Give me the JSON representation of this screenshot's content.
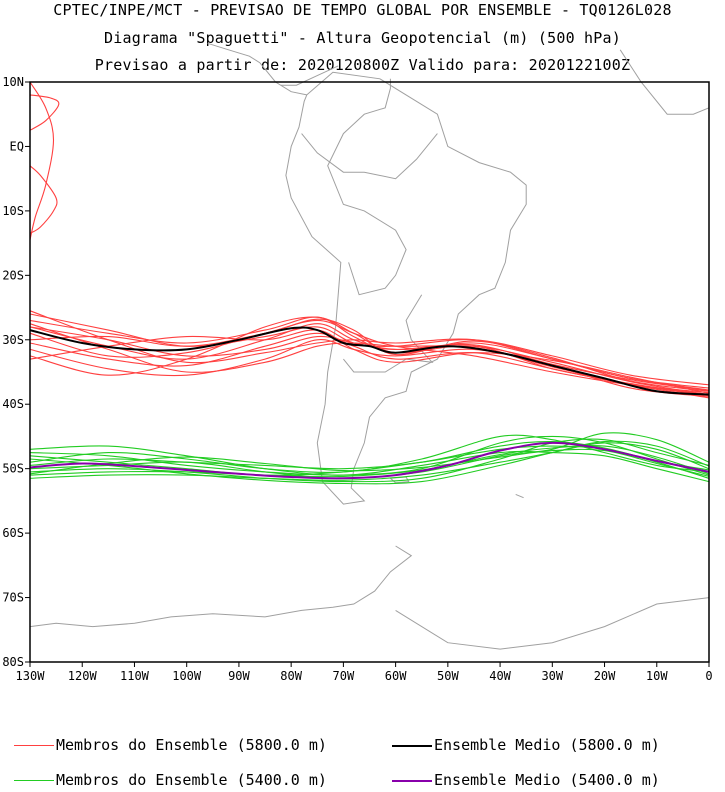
{
  "title": {
    "line1": "CPTEC/INPE/MCT - PREVISAO DE TEMPO GLOBAL POR ENSEMBLE - TQ0126L028",
    "line2": "Diagrama \"Spaguetti\" - Altura Geopotencial (m) (500 hPa)",
    "line3": "Previsao a partir de: 2020120800Z  Valido para: 2020122100Z"
  },
  "chart_data": {
    "type": "line",
    "title": "Diagrama \"Spaguetti\" - Altura Geopotencial (m) (500 hPa)",
    "xlim": [
      -130,
      0
    ],
    "ylim": [
      -80,
      10
    ],
    "x_ticks": [
      {
        "value": -130,
        "label": "130W"
      },
      {
        "value": -120,
        "label": "120W"
      },
      {
        "value": -110,
        "label": "110W"
      },
      {
        "value": -100,
        "label": "100W"
      },
      {
        "value": -90,
        "label": "90W"
      },
      {
        "value": -80,
        "label": "80W"
      },
      {
        "value": -70,
        "label": "70W"
      },
      {
        "value": -60,
        "label": "60W"
      },
      {
        "value": -50,
        "label": "50W"
      },
      {
        "value": -40,
        "label": "40W"
      },
      {
        "value": -30,
        "label": "30W"
      },
      {
        "value": -20,
        "label": "20W"
      },
      {
        "value": -10,
        "label": "10W"
      },
      {
        "value": 0,
        "label": "0"
      }
    ],
    "y_ticks": [
      {
        "value": 10,
        "label": "10N"
      },
      {
        "value": 0,
        "label": "EQ"
      },
      {
        "value": -10,
        "label": "10S"
      },
      {
        "value": -20,
        "label": "20S"
      },
      {
        "value": -30,
        "label": "30S"
      },
      {
        "value": -40,
        "label": "40S"
      },
      {
        "value": -50,
        "label": "50S"
      },
      {
        "value": -60,
        "label": "60S"
      },
      {
        "value": -70,
        "label": "70S"
      },
      {
        "value": -80,
        "label": "80S"
      }
    ],
    "colors": {
      "member_5800": "#ff4040",
      "mean_5800": "#000000",
      "member_5400": "#22cc22",
      "mean_5400": "#8800aa",
      "coast": "#a0a0a0"
    },
    "series": [
      {
        "name": "Ensemble Medio (5800.0 m)",
        "group": "mean_5800",
        "x": [
          -130,
          -120,
          -110,
          -100,
          -90,
          -80,
          -75,
          -70,
          -65,
          -60,
          -50,
          -40,
          -30,
          -20,
          -10,
          0
        ],
        "y": [
          -28.5,
          -30.5,
          -31.5,
          -31.5,
          -30,
          -28.2,
          -28.5,
          -30.5,
          -31,
          -32,
          -31,
          -32,
          -34,
          -36,
          -38,
          -38.5
        ]
      },
      {
        "name": "Ensemble Medio (5400.0 m)",
        "group": "mean_5400",
        "x": [
          -130,
          -120,
          -110,
          -100,
          -90,
          -80,
          -70,
          -60,
          -50,
          -40,
          -30,
          -20,
          -10,
          0
        ],
        "y": [
          -49.8,
          -49.2,
          -49.6,
          -50.2,
          -50.8,
          -51.3,
          -51.5,
          -51.0,
          -49.5,
          -47.2,
          -46.0,
          -47.0,
          -48.8,
          -50.5
        ]
      },
      {
        "name": "m58_1",
        "group": "member_5800",
        "x": [
          -130,
          -115,
          -100,
          -85,
          -75,
          -68,
          -60,
          -45,
          -30,
          -15,
          0
        ],
        "y": [
          -28,
          -31,
          -33,
          -30,
          -27.5,
          -30,
          -31.5,
          -31,
          -33.5,
          -36.5,
          -38.5
        ]
      },
      {
        "name": "m58_2",
        "group": "member_5800",
        "x": [
          -130,
          -115,
          -100,
          -85,
          -75,
          -68,
          -60,
          -45,
          -30,
          -15,
          0
        ],
        "y": [
          -27,
          -29,
          -30.5,
          -28.5,
          -26.5,
          -29.5,
          -32,
          -30.5,
          -33,
          -36,
          -37.5
        ]
      },
      {
        "name": "m58_3",
        "group": "member_5800",
        "x": [
          -130,
          -115,
          -100,
          -85,
          -75,
          -68,
          -60,
          -45,
          -30,
          -15,
          0
        ],
        "y": [
          -30.5,
          -33,
          -34,
          -31,
          -29,
          -31,
          -33,
          -32,
          -34.5,
          -37,
          -39
        ]
      },
      {
        "name": "m58_4",
        "group": "member_5800",
        "x": [
          -130,
          -115,
          -100,
          -85,
          -75,
          -68,
          -60,
          -45,
          -30,
          -15,
          0
        ],
        "y": [
          -26,
          -28.5,
          -31,
          -29.5,
          -28,
          -30.5,
          -31,
          -30,
          -32.5,
          -35.5,
          -37
        ]
      },
      {
        "name": "m58_5",
        "group": "member_5800",
        "x": [
          -130,
          -115,
          -100,
          -85,
          -75,
          -68,
          -60,
          -45,
          -30,
          -15,
          0
        ],
        "y": [
          -31.5,
          -34.5,
          -35.5,
          -33,
          -30,
          -31.5,
          -32.5,
          -31.5,
          -34,
          -37.5,
          -38.8
        ]
      },
      {
        "name": "m58_6",
        "group": "member_5800",
        "x": [
          -130,
          -115,
          -100,
          -85,
          -75,
          -68,
          -60,
          -45,
          -30,
          -15,
          0
        ],
        "y": [
          -29,
          -32.5,
          -32,
          -29,
          -27,
          -29,
          -31,
          -32.5,
          -35,
          -37,
          -38.2
        ]
      },
      {
        "name": "m58_7",
        "group": "member_5800",
        "x": [
          -130,
          -115,
          -100,
          -85,
          -75,
          -68,
          -60,
          -45,
          -30,
          -15,
          0
        ],
        "y": [
          -25.5,
          -30,
          -33.5,
          -32,
          -30.5,
          -30,
          -30.5,
          -30,
          -33,
          -36,
          -37.8
        ]
      },
      {
        "name": "m58_8",
        "group": "member_5800",
        "x": [
          -130,
          -115,
          -100,
          -85,
          -75,
          -68,
          -60,
          -45,
          -30,
          -15,
          0
        ],
        "y": [
          -32.5,
          -35.5,
          -33,
          -28,
          -26.5,
          -29,
          -32,
          -31,
          -34.5,
          -36.8,
          -38.6
        ]
      },
      {
        "name": "m58_9",
        "group": "member_5800",
        "x": [
          -130,
          -115,
          -100,
          -85,
          -75,
          -68,
          -60,
          -45,
          -30,
          -15,
          0
        ],
        "y": [
          -28,
          -30,
          -32.5,
          -31.5,
          -29.5,
          -30.5,
          -31.5,
          -30.8,
          -33.8,
          -36.2,
          -37.9
        ]
      },
      {
        "name": "m58_10",
        "group": "member_5800",
        "x": [
          -130,
          -115,
          -100,
          -85,
          -75,
          -68,
          -60,
          -45,
          -30,
          -15,
          0
        ],
        "y": [
          -33,
          -31,
          -29.5,
          -30,
          -28.5,
          -31.5,
          -33.5,
          -32,
          -33.2,
          -35.8,
          -38.3
        ]
      },
      {
        "name": "m58_11",
        "group": "member_5800",
        "x": [
          -130,
          -115,
          -100,
          -85,
          -75,
          -68,
          -60,
          -45,
          -30,
          -15,
          0
        ],
        "y": [
          -27.5,
          -31.5,
          -35,
          -33.5,
          -31,
          -30.5,
          -31,
          -31.2,
          -34.2,
          -36.9,
          -38.7
        ]
      },
      {
        "name": "m58_12",
        "group": "member_5800",
        "x": [
          -130,
          -115,
          -100,
          -85,
          -75,
          -68,
          -60,
          -45,
          -30,
          -15,
          0
        ],
        "y": [
          -30,
          -29.5,
          -31,
          -29,
          -26.8,
          -28.5,
          -32.3,
          -30.2,
          -32.8,
          -36.4,
          -38
        ]
      },
      {
        "name": "m58_tropics_a",
        "group": "member_5800",
        "x": [
          -130,
          -127,
          -125.5,
          -127,
          -129,
          -130
        ],
        "y": [
          10,
          6,
          1,
          -6,
          -11,
          -14.5
        ]
      },
      {
        "name": "m58_tropics_b",
        "group": "member_5800",
        "x": [
          -130,
          -127,
          -124.5,
          -126,
          -130
        ],
        "y": [
          2.5,
          4,
          6.5,
          7.5,
          8
        ]
      },
      {
        "name": "m58_tropics_c",
        "group": "member_5800",
        "x": [
          -130,
          -128,
          -125,
          -125.5,
          -128,
          -130
        ],
        "y": [
          -3,
          -4.5,
          -8,
          -10,
          -12.5,
          -13.5
        ]
      },
      {
        "name": "m54_1",
        "group": "member_5400",
        "x": [
          -130,
          -115,
          -100,
          -85,
          -70,
          -55,
          -40,
          -30,
          -20,
          -10,
          0
        ],
        "y": [
          -47.5,
          -48,
          -49.5,
          -50.5,
          -51,
          -50,
          -46,
          -45,
          -46,
          -48.5,
          -51
        ]
      },
      {
        "name": "m54_2",
        "group": "member_5400",
        "x": [
          -130,
          -115,
          -100,
          -85,
          -70,
          -55,
          -40,
          -30,
          -20,
          -10,
          0
        ],
        "y": [
          -50.5,
          -50,
          -50.5,
          -51.5,
          -52,
          -51.5,
          -48.5,
          -46,
          -45.5,
          -47.5,
          -49.5
        ]
      },
      {
        "name": "m54_3",
        "group": "member_5400",
        "x": [
          -130,
          -115,
          -100,
          -85,
          -70,
          -55,
          -40,
          -30,
          -20,
          -10,
          0
        ],
        "y": [
          -49,
          -47.5,
          -48.5,
          -50,
          -50.5,
          -48.5,
          -45,
          -45.5,
          -47.5,
          -49.5,
          -50.5
        ]
      },
      {
        "name": "m54_4",
        "group": "member_5400",
        "x": [
          -130,
          -115,
          -100,
          -85,
          -70,
          -55,
          -40,
          -30,
          -20,
          -10,
          0
        ],
        "y": [
          -51.5,
          -51,
          -51,
          -51.5,
          -51.8,
          -51,
          -49,
          -47.5,
          -46,
          -47,
          -50
        ]
      },
      {
        "name": "m54_5",
        "group": "member_5400",
        "x": [
          -130,
          -115,
          -100,
          -85,
          -70,
          -55,
          -40,
          -30,
          -20,
          -10,
          0
        ],
        "y": [
          -48,
          -49,
          -50,
          -51,
          -50.5,
          -49,
          -47,
          -46.5,
          -47,
          -49,
          -51.5
        ]
      },
      {
        "name": "m54_6",
        "group": "member_5400",
        "x": [
          -130,
          -115,
          -100,
          -85,
          -70,
          -55,
          -40,
          -30,
          -20,
          -10,
          0
        ],
        "y": [
          -50,
          -49.5,
          -49,
          -50.5,
          -51.5,
          -50.5,
          -48,
          -47,
          -44.5,
          -45.5,
          -49
        ]
      },
      {
        "name": "m54_7",
        "group": "member_5400",
        "x": [
          -130,
          -115,
          -100,
          -85,
          -70,
          -55,
          -40,
          -30,
          -20,
          -10,
          0
        ],
        "y": [
          -47,
          -46.5,
          -48,
          -50,
          -51,
          -49.5,
          -47.5,
          -47.5,
          -48,
          -50,
          -52
        ]
      },
      {
        "name": "m54_8",
        "group": "member_5400",
        "x": [
          -130,
          -115,
          -100,
          -85,
          -70,
          -55,
          -40,
          -30,
          -20,
          -10,
          0
        ],
        "y": [
          -51,
          -50.5,
          -50.5,
          -51,
          -51.2,
          -50.2,
          -47.8,
          -46.8,
          -46.5,
          -48.2,
          -50.8
        ]
      },
      {
        "name": "m54_9",
        "group": "member_5400",
        "x": [
          -130,
          -115,
          -100,
          -85,
          -70,
          -55,
          -40,
          -30,
          -20,
          -10,
          0
        ],
        "y": [
          -49.5,
          -48.5,
          -49,
          -49.5,
          -50,
          -49,
          -46.5,
          -45.8,
          -46.8,
          -48.8,
          -50.2
        ]
      },
      {
        "name": "m54_10",
        "group": "member_5400",
        "x": [
          -130,
          -115,
          -100,
          -85,
          -70,
          -55,
          -40,
          -30,
          -20,
          -10,
          0
        ],
        "y": [
          -48.5,
          -49.5,
          -50.8,
          -51.8,
          -52.3,
          -52,
          -49.5,
          -47.5,
          -45.8,
          -46.5,
          -49.6
        ]
      },
      {
        "name": "m54_11",
        "group": "member_5400",
        "x": [
          -130,
          -115,
          -100,
          -85,
          -70,
          -55,
          -40,
          -30,
          -20,
          -10,
          0
        ],
        "y": [
          -50.8,
          -49.2,
          -48.2,
          -49.2,
          -50.3,
          -49.8,
          -48.2,
          -47.2,
          -47.2,
          -49.2,
          -51.2
        ]
      }
    ],
    "legend": [
      {
        "label": "Membros do Ensemble (5800.0 m)",
        "color_key": "member_5800"
      },
      {
        "label": "Ensemble Medio (5800.0 m)",
        "color_key": "mean_5800"
      },
      {
        "label": "Membros do Ensemble (5400.0 m)",
        "color_key": "member_5400"
      },
      {
        "label": "Ensemble Medio (5400.0 m)",
        "color_key": "mean_5400"
      }
    ]
  }
}
